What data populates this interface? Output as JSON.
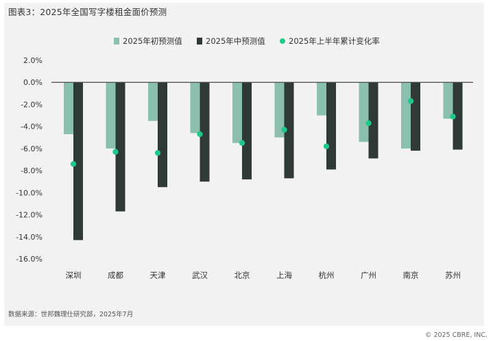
{
  "title": "图表3：2025年全国写字楼租金面价预测",
  "source": "数据来源：世邦魏理仕研究部，2025年7月",
  "copyright": "© 2025 CBRE, INC.",
  "colors": {
    "series_beginning": "#8bbfae",
    "series_mid": "#2f3a38",
    "series_change": "#1ec98a",
    "panel_bg": "#f2f2f2"
  },
  "chart_data": {
    "type": "bar",
    "categories": [
      "深圳",
      "成都",
      "天津",
      "武汉",
      "北京",
      "上海",
      "杭州",
      "广州",
      "南京",
      "苏州"
    ],
    "series": [
      {
        "name": "2025年初预测值",
        "kind": "bar",
        "values": [
          -4.7,
          -6.0,
          -3.5,
          -4.6,
          -5.5,
          -5.0,
          -3.0,
          -5.4,
          -6.0,
          -3.3
        ]
      },
      {
        "name": "2025年中预测值",
        "kind": "bar",
        "values": [
          -14.3,
          -11.7,
          -9.5,
          -9.0,
          -8.8,
          -8.7,
          -7.9,
          -6.9,
          -6.2,
          -6.1
        ]
      },
      {
        "name": "2025年上半年累计变化率",
        "kind": "scatter",
        "values": [
          -7.4,
          -6.3,
          -6.4,
          -4.7,
          -5.5,
          -4.3,
          -5.8,
          -3.7,
          -1.7,
          -3.1
        ]
      }
    ],
    "yticks": [
      "2.0%",
      "0.0%",
      "-2.0%",
      "-4.0%",
      "-6.0%",
      "-8.0%",
      "-10.0%",
      "-12.0%",
      "-14.0%",
      "-16.0%"
    ],
    "ylim": [
      -16,
      2
    ],
    "legend_position": "top-center",
    "grid": false
  }
}
